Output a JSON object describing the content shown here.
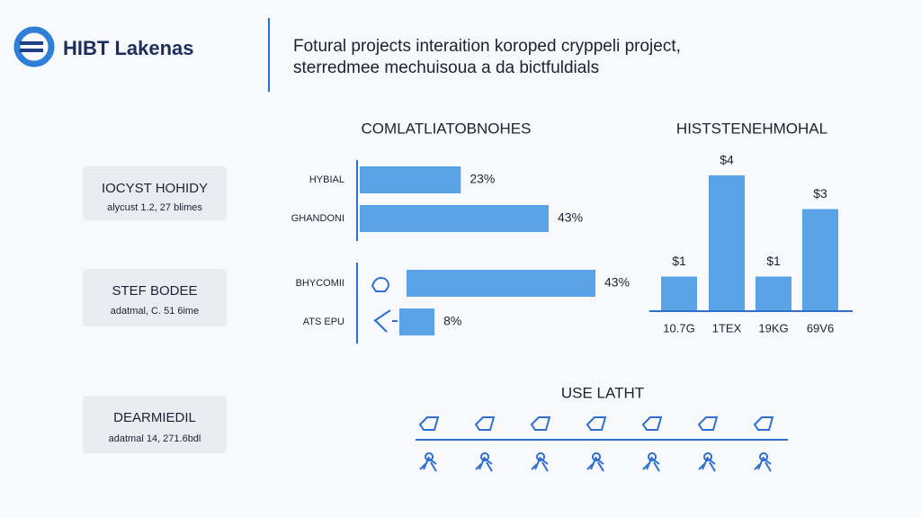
{
  "header": {
    "logo": "HIBT Lakenas",
    "description": [
      "Fotural projects interaition koroped cryppeli project,",
      "sterredmee mechuisoua a da bictfuldials"
    ]
  },
  "cards": [
    {
      "title": "IOCYST HOHIDY",
      "subtitle": "alycust 1.2, 27 blimes"
    },
    {
      "title": "STEF BODEE",
      "subtitle": "adatmal, C. 51 6ime"
    },
    {
      "title": "DEARMIEDIL",
      "subtitle": "adatmal 14, 271.6bdl"
    }
  ],
  "chart_data": [
    {
      "type": "hbar",
      "title": "COMLATLIATOBNOHES",
      "categories": [
        "HYBIAL",
        "GHANDONI",
        "BHYCOMII",
        "ATS EPU"
      ],
      "values": [
        23,
        43,
        43,
        8
      ],
      "value_labels": [
        "23%",
        "43%",
        "43%",
        "8%"
      ],
      "color": "#5aa3e6"
    },
    {
      "type": "bar",
      "title": "HISTSTENEHMOHAL",
      "categories": [
        "10.7G",
        "1TEX",
        "19KG",
        "69V6"
      ],
      "values": [
        1,
        4,
        1,
        3
      ],
      "value_labels": [
        "$1",
        "$4",
        "$1",
        "$3"
      ],
      "color": "#5aa3e6"
    }
  ],
  "timeline": {
    "title": "USE LATHT"
  }
}
